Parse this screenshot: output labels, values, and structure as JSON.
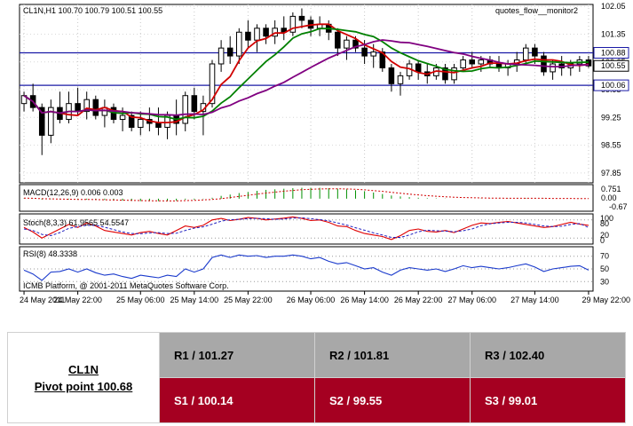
{
  "chart_data": {
    "type": "candlestick",
    "header": "CL1N,H1  100.70 100.79 100.51 100.55",
    "indicator_name": "quotes_flow__monitor2",
    "watermark": "ICMB Platform, @ 2001-2011 MetaQuotes Software Corp.",
    "price_axis": {
      "ylim": [
        97.6,
        102.1
      ],
      "ticks": [
        "102.05",
        "101.35",
        "100.65",
        "99.95",
        "99.25",
        "98.55",
        "97.85"
      ],
      "lines": [
        {
          "value": 100.88,
          "label": "100.88",
          "color": "#1a1aa6"
        },
        {
          "value": 100.06,
          "label": "100.06",
          "color": "#1a1aa6"
        }
      ],
      "current_price": {
        "value": 100.55,
        "label": "100.55"
      }
    },
    "x_ticks": [
      "24 May 2011",
      "24 May 22:00",
      "25 May 06:00",
      "25 May 14:00",
      "25 May 22:00",
      "26 May 06:00",
      "26 May 14:00",
      "26 May 22:00",
      "27 May 06:00",
      "27 May 14:00",
      "29 May 22:00"
    ],
    "ohlc": [
      [
        99.6,
        99.9,
        99.4,
        99.8
      ],
      [
        99.8,
        100.1,
        99.4,
        99.5
      ],
      [
        99.5,
        99.6,
        98.3,
        98.8
      ],
      [
        98.8,
        99.7,
        98.6,
        99.5
      ],
      [
        99.5,
        99.9,
        99.1,
        99.2
      ],
      [
        99.2,
        99.9,
        99.1,
        99.6
      ],
      [
        99.6,
        100.0,
        99.3,
        99.4
      ],
      [
        99.4,
        99.9,
        99.2,
        99.7
      ],
      [
        99.7,
        99.8,
        99.2,
        99.3
      ],
      [
        99.3,
        99.7,
        99.0,
        99.5
      ],
      [
        99.5,
        99.6,
        99.1,
        99.2
      ],
      [
        99.2,
        99.5,
        98.9,
        99.3
      ],
      [
        99.3,
        99.4,
        98.9,
        99.0
      ],
      [
        99.0,
        99.4,
        98.8,
        99.2
      ],
      [
        99.2,
        99.5,
        98.9,
        99.1
      ],
      [
        99.1,
        99.5,
        98.8,
        99.0
      ],
      [
        99.0,
        99.4,
        98.7,
        99.3
      ],
      [
        99.3,
        99.7,
        98.8,
        99.1
      ],
      [
        99.1,
        99.9,
        98.9,
        99.8
      ],
      [
        99.8,
        100.0,
        99.2,
        99.4
      ],
      [
        99.4,
        99.8,
        98.8,
        99.6
      ],
      [
        99.6,
        100.7,
        99.5,
        100.6
      ],
      [
        100.6,
        101.2,
        100.4,
        101.0
      ],
      [
        101.0,
        101.3,
        100.6,
        100.8
      ],
      [
        100.8,
        101.5,
        100.6,
        101.4
      ],
      [
        101.4,
        101.7,
        101.0,
        101.2
      ],
      [
        101.2,
        101.6,
        100.9,
        101.5
      ],
      [
        101.5,
        101.6,
        101.1,
        101.3
      ],
      [
        101.3,
        101.7,
        101.1,
        101.5
      ],
      [
        101.5,
        101.8,
        101.2,
        101.4
      ],
      [
        101.4,
        101.9,
        101.3,
        101.8
      ],
      [
        101.8,
        102.0,
        101.5,
        101.7
      ],
      [
        101.7,
        101.8,
        101.3,
        101.5
      ],
      [
        101.5,
        101.8,
        101.3,
        101.6
      ],
      [
        101.6,
        101.7,
        101.2,
        101.4
      ],
      [
        101.4,
        101.5,
        100.8,
        101.0
      ],
      [
        101.0,
        101.3,
        100.7,
        101.2
      ],
      [
        101.2,
        101.3,
        100.9,
        101.0
      ],
      [
        101.0,
        101.2,
        100.6,
        100.8
      ],
      [
        100.8,
        101.1,
        100.5,
        100.9
      ],
      [
        100.9,
        101.0,
        100.4,
        100.5
      ],
      [
        100.5,
        100.6,
        99.9,
        100.1
      ],
      [
        100.1,
        100.4,
        99.8,
        100.3
      ],
      [
        100.3,
        100.7,
        100.2,
        100.6
      ],
      [
        100.6,
        100.7,
        100.2,
        100.4
      ],
      [
        100.4,
        100.6,
        100.1,
        100.3
      ],
      [
        100.3,
        100.6,
        100.2,
        100.5
      ],
      [
        100.5,
        100.6,
        100.1,
        100.2
      ],
      [
        100.2,
        100.6,
        100.1,
        100.5
      ],
      [
        100.5,
        100.8,
        100.4,
        100.7
      ],
      [
        100.7,
        100.9,
        100.5,
        100.6
      ],
      [
        100.6,
        100.8,
        100.4,
        100.7
      ],
      [
        100.7,
        100.8,
        100.5,
        100.6
      ],
      [
        100.6,
        100.8,
        100.4,
        100.5
      ],
      [
        100.5,
        100.7,
        100.3,
        100.6
      ],
      [
        100.6,
        100.9,
        100.4,
        100.7
      ],
      [
        100.7,
        101.1,
        100.6,
        101.0
      ],
      [
        101.0,
        101.1,
        100.6,
        100.8
      ],
      [
        100.8,
        100.9,
        100.3,
        100.4
      ],
      [
        100.4,
        100.7,
        100.2,
        100.6
      ],
      [
        100.6,
        100.8,
        100.3,
        100.5
      ],
      [
        100.5,
        100.7,
        100.3,
        100.6
      ],
      [
        100.6,
        100.8,
        100.4,
        100.7
      ],
      [
        100.7,
        100.8,
        100.5,
        100.55
      ]
    ],
    "moving_averages": [
      {
        "color": "#d00000",
        "period": 5
      },
      {
        "color": "#008000",
        "period": 10
      },
      {
        "color": "#800080",
        "period": 20
      }
    ],
    "panels": {
      "macd": {
        "label": "MACD(12,26,9) 0.006 0.003",
        "ticks": [
          "0.751",
          "0.00",
          "-0.67"
        ],
        "histogram": [
          0.02,
          0.01,
          -0.05,
          -0.02,
          -0.04,
          -0.03,
          -0.05,
          -0.05,
          -0.06,
          -0.07,
          -0.09,
          -0.1,
          -0.12,
          -0.13,
          -0.12,
          -0.13,
          -0.12,
          -0.11,
          -0.05,
          -0.05,
          -0.02,
          0.05,
          0.15,
          0.22,
          0.3,
          0.36,
          0.42,
          0.47,
          0.5,
          0.53,
          0.56,
          0.58,
          0.58,
          0.58,
          0.56,
          0.53,
          0.5,
          0.45,
          0.4,
          0.33,
          0.25,
          0.17,
          0.12,
          0.08,
          0.05,
          0.03,
          0.02,
          0.01,
          0.0,
          0.0,
          0.0,
          0.01,
          0.01,
          0.01,
          0.01,
          0.01,
          0.02,
          0.02,
          0.01,
          0.01,
          0.0,
          0.0,
          0.005,
          0.006
        ],
        "signal": [
          0.03,
          0.02,
          0.0,
          -0.01,
          -0.02,
          -0.03,
          -0.04,
          -0.04,
          -0.05,
          -0.06,
          -0.07,
          -0.08,
          -0.09,
          -0.1,
          -0.11,
          -0.11,
          -0.12,
          -0.12,
          -0.1,
          -0.09,
          -0.07,
          -0.04,
          0.0,
          0.06,
          0.12,
          0.18,
          0.24,
          0.3,
          0.35,
          0.4,
          0.44,
          0.48,
          0.5,
          0.52,
          0.53,
          0.53,
          0.52,
          0.5,
          0.47,
          0.43,
          0.39,
          0.34,
          0.29,
          0.24,
          0.2,
          0.16,
          0.13,
          0.1,
          0.08,
          0.06,
          0.05,
          0.04,
          0.03,
          0.03,
          0.02,
          0.02,
          0.02,
          0.02,
          0.02,
          0.01,
          0.01,
          0.01,
          0.003,
          0.003
        ]
      },
      "stoch": {
        "label": "Stoch(8,3,3) 61.9565 54.5547",
        "ticks": [
          "100",
          "80",
          "20",
          "0"
        ],
        "main": [
          55,
          40,
          20,
          35,
          50,
          65,
          55,
          70,
          60,
          45,
          40,
          35,
          30,
          38,
          42,
          35,
          30,
          45,
          60,
          55,
          62,
          80,
          85,
          78,
          82,
          88,
          85,
          80,
          83,
          86,
          90,
          85,
          78,
          80,
          72,
          60,
          58,
          45,
          35,
          30,
          25,
          15,
          28,
          45,
          50,
          42,
          40,
          45,
          38,
          50,
          62,
          70,
          68,
          72,
          75,
          70,
          65,
          60,
          55,
          58,
          65,
          72,
          66,
          62
        ],
        "signal": [
          50,
          45,
          32,
          28,
          38,
          52,
          58,
          62,
          62,
          56,
          48,
          40,
          35,
          34,
          37,
          38,
          35,
          36,
          45,
          53,
          57,
          66,
          76,
          81,
          82,
          84,
          85,
          84,
          82,
          83,
          86,
          87,
          84,
          81,
          77,
          70,
          63,
          54,
          46,
          37,
          30,
          22,
          22,
          30,
          41,
          46,
          44,
          43,
          41,
          44,
          50,
          61,
          67,
          70,
          72,
          72,
          70,
          65,
          60,
          58,
          59,
          65,
          68,
          55
        ]
      },
      "rsi": {
        "label": "RSI(8) 48.3338",
        "ticks": [
          "70",
          "50",
          "30"
        ],
        "values": [
          48,
          42,
          32,
          45,
          46,
          50,
          45,
          50,
          44,
          40,
          42,
          38,
          35,
          40,
          38,
          36,
          40,
          38,
          50,
          45,
          50,
          68,
          72,
          68,
          72,
          70,
          71,
          68,
          70,
          70,
          72,
          70,
          66,
          68,
          62,
          58,
          60,
          55,
          50,
          52,
          45,
          40,
          48,
          52,
          50,
          48,
          50,
          46,
          50,
          55,
          52,
          54,
          52,
          50,
          52,
          55,
          58,
          53,
          46,
          50,
          52,
          54,
          55,
          48
        ]
      }
    }
  },
  "pivot_table": {
    "symbol": "CL1N",
    "pivot_label": "Pivot point 100.68",
    "resistance": [
      "R1 / 101.27",
      "R2  / 101.81",
      "R3 / 102.40"
    ],
    "support": [
      "S1 / 100.14",
      "S2 /  99.55",
      "S3 /  99.01"
    ]
  },
  "colors": {
    "resistance_bg": "#a8a8a8",
    "support_bg": "#a50021",
    "support_text": "#ffffff"
  }
}
